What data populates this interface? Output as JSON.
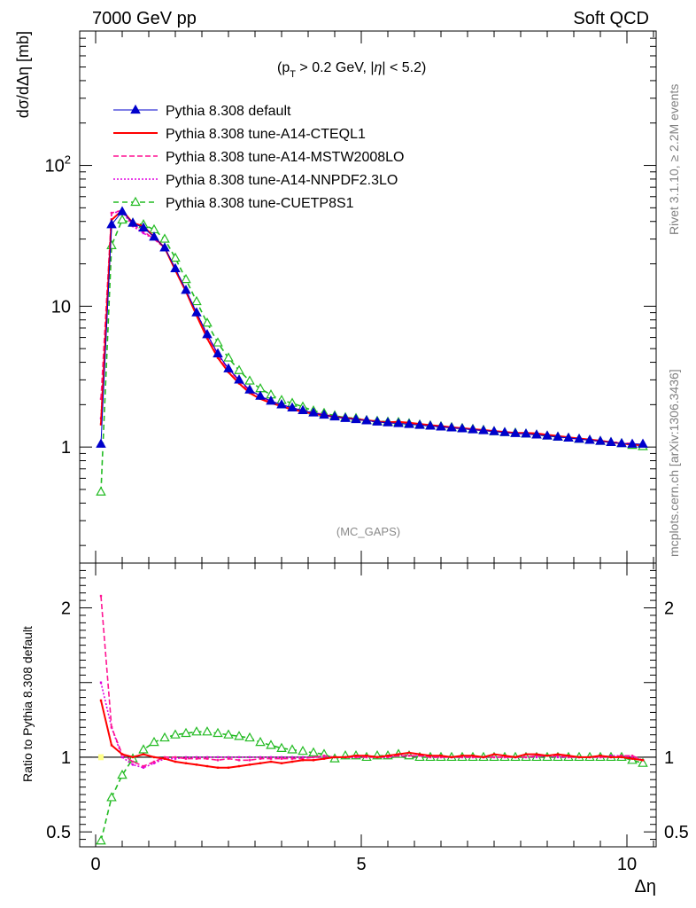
{
  "header": {
    "left": "7000 GeV pp",
    "right": "Soft QCD"
  },
  "side_labels": {
    "rivet": "Rivet 3.1.10, ≥ 2.2M events",
    "mcplots": "mcplots.cern.ch [arXiv:1306.3436]"
  },
  "colors": {
    "default": "#0000cc",
    "cteq": "#ff0000",
    "mstw": "#ff1493",
    "nnpdf": "#e000e0",
    "cuetp": "#22bb22",
    "ref_band": "#ffff88"
  },
  "chart_data": [
    {
      "type": "line",
      "title": "(p_T > 0.2 GeV, |η| < 5.2)",
      "watermark": "(MC_GAPS)",
      "ylabel": "dσ/dΔη [mb]",
      "xlabel": "",
      "yscale": "log",
      "ylim": [
        0.15,
        900
      ],
      "xlim": [
        -0.3,
        10.55
      ],
      "yticks": [
        {
          "value": 1,
          "label": "1"
        },
        {
          "value": 10,
          "label": "10"
        },
        {
          "value": 100,
          "label": "10^2"
        }
      ],
      "legend_position": "top-left",
      "x": [
        0.1,
        0.3,
        0.5,
        0.7,
        0.9,
        1.1,
        1.3,
        1.5,
        1.7,
        1.9,
        2.1,
        2.3,
        2.5,
        2.7,
        2.9,
        3.1,
        3.3,
        3.5,
        3.7,
        3.9,
        4.1,
        4.3,
        4.5,
        4.7,
        4.9,
        5.1,
        5.3,
        5.5,
        5.7,
        5.9,
        6.1,
        6.3,
        6.5,
        6.7,
        6.9,
        7.1,
        7.3,
        7.5,
        7.7,
        7.9,
        8.1,
        8.3,
        8.5,
        8.7,
        8.9,
        9.1,
        9.3,
        9.5,
        9.7,
        9.9,
        10.1,
        10.3
      ],
      "series": [
        {
          "name": "Pythia 8.308 default",
          "key": "default",
          "marker": "triangle-filled",
          "dash": "",
          "values": [
            1.05,
            38,
            47,
            39,
            36,
            31,
            26,
            18.5,
            13,
            9,
            6.3,
            4.6,
            3.6,
            3.0,
            2.55,
            2.3,
            2.12,
            2.0,
            1.9,
            1.82,
            1.75,
            1.69,
            1.64,
            1.6,
            1.57,
            1.54,
            1.51,
            1.49,
            1.47,
            1.45,
            1.43,
            1.41,
            1.39,
            1.37,
            1.35,
            1.33,
            1.31,
            1.29,
            1.27,
            1.25,
            1.24,
            1.22,
            1.2,
            1.18,
            1.16,
            1.14,
            1.12,
            1.1,
            1.08,
            1.06,
            1.05,
            1.05
          ]
        },
        {
          "name": "Pythia 8.308 tune-A14-CTEQL1",
          "key": "cteq",
          "marker": "",
          "dash": "",
          "values": [
            1.45,
            41,
            48,
            39,
            37,
            31,
            26,
            18,
            12.7,
            8.6,
            5.9,
            4.3,
            3.4,
            2.83,
            2.42,
            2.2,
            2.05,
            1.95,
            1.84,
            1.79,
            1.72,
            1.68,
            1.64,
            1.61,
            1.58,
            1.55,
            1.52,
            1.5,
            1.51,
            1.49,
            1.46,
            1.43,
            1.41,
            1.38,
            1.36,
            1.34,
            1.32,
            1.3,
            1.28,
            1.26,
            1.26,
            1.25,
            1.22,
            1.2,
            1.17,
            1.15,
            1.13,
            1.11,
            1.08,
            1.06,
            1.04,
            1.03
          ]
        },
        {
          "name": "Pythia 8.308 tune-A14-MSTW2008LO",
          "key": "mstw",
          "marker": "",
          "dash": "6,3",
          "values": [
            2.2,
            46,
            48,
            38,
            34,
            30,
            26,
            18.5,
            12.9,
            8.9,
            6.2,
            4.5,
            3.55,
            2.95,
            2.5,
            2.28,
            2.1,
            1.98,
            1.88,
            1.81,
            1.76,
            1.7,
            1.65,
            1.6,
            1.57,
            1.54,
            1.51,
            1.49,
            1.48,
            1.46,
            1.44,
            1.41,
            1.39,
            1.37,
            1.35,
            1.33,
            1.31,
            1.29,
            1.27,
            1.25,
            1.24,
            1.23,
            1.21,
            1.19,
            1.16,
            1.14,
            1.12,
            1.1,
            1.08,
            1.07,
            1.06,
            1.03
          ]
        },
        {
          "name": "Pythia 8.308 tune-A14-NNPDF2.3LO",
          "key": "nnpdf",
          "marker": "",
          "dash": "2,2",
          "values": [
            1.6,
            46,
            47,
            37,
            33,
            30,
            26,
            18.3,
            13,
            9,
            6.3,
            4.6,
            3.6,
            3.0,
            2.55,
            2.3,
            2.12,
            2.0,
            1.9,
            1.82,
            1.75,
            1.69,
            1.64,
            1.6,
            1.57,
            1.54,
            1.51,
            1.49,
            1.48,
            1.46,
            1.44,
            1.41,
            1.39,
            1.37,
            1.35,
            1.33,
            1.31,
            1.29,
            1.27,
            1.25,
            1.24,
            1.22,
            1.21,
            1.18,
            1.16,
            1.14,
            1.12,
            1.1,
            1.09,
            1.07,
            1.05,
            1.03
          ]
        },
        {
          "name": "Pythia 8.308 tune-CUETP8S1",
          "key": "cuetp",
          "marker": "triangle-open",
          "dash": "6,4",
          "values": [
            0.48,
            27,
            41,
            39,
            38,
            35,
            30,
            22,
            15.5,
            10.8,
            7.6,
            5.5,
            4.3,
            3.5,
            2.95,
            2.6,
            2.35,
            2.15,
            2.05,
            1.93,
            1.81,
            1.74,
            1.67,
            1.62,
            1.6,
            1.55,
            1.53,
            1.51,
            1.5,
            1.47,
            1.44,
            1.42,
            1.4,
            1.38,
            1.36,
            1.34,
            1.32,
            1.29,
            1.27,
            1.26,
            1.24,
            1.22,
            1.2,
            1.18,
            1.16,
            1.14,
            1.12,
            1.1,
            1.08,
            1.06,
            1.03,
            1.01
          ]
        }
      ]
    },
    {
      "type": "line",
      "ylabel": "Ratio to Pythia 8.308 default",
      "xlabel": "Δη",
      "ylim": [
        0.4,
        2.3
      ],
      "xlim": [
        -0.3,
        10.55
      ],
      "yticks": [
        {
          "value": 0.5,
          "label": "0.5"
        },
        {
          "value": 1,
          "label": "1"
        },
        {
          "value": 2,
          "label": "2"
        }
      ],
      "xticks": [
        {
          "value": 0,
          "label": "0"
        },
        {
          "value": 5,
          "label": "5"
        },
        {
          "value": 10,
          "label": "10"
        }
      ],
      "x": [
        0.1,
        0.3,
        0.5,
        0.7,
        0.9,
        1.1,
        1.3,
        1.5,
        1.7,
        1.9,
        2.1,
        2.3,
        2.5,
        2.7,
        2.9,
        3.1,
        3.3,
        3.5,
        3.7,
        3.9,
        4.1,
        4.3,
        4.5,
        4.7,
        4.9,
        5.1,
        5.3,
        5.5,
        5.7,
        5.9,
        6.1,
        6.3,
        6.5,
        6.7,
        6.9,
        7.1,
        7.3,
        7.5,
        7.7,
        7.9,
        8.1,
        8.3,
        8.5,
        8.7,
        8.9,
        9.1,
        9.3,
        9.5,
        9.7,
        9.9,
        10.1,
        10.3
      ],
      "series": [
        {
          "name": "Pythia 8.308 tune-A14-CTEQL1",
          "key": "cteq",
          "marker": "",
          "dash": "",
          "values": [
            1.38,
            1.08,
            1.02,
            1.0,
            1.02,
            1.0,
            0.99,
            0.97,
            0.96,
            0.95,
            0.94,
            0.93,
            0.93,
            0.94,
            0.95,
            0.96,
            0.97,
            0.96,
            0.97,
            0.98,
            0.98,
            0.99,
            1.0,
            1.0,
            1.01,
            1.01,
            1.0,
            1.01,
            1.02,
            1.03,
            1.02,
            1.01,
            1.01,
            1.0,
            1.01,
            1.01,
            1.0,
            1.02,
            1.01,
            1.0,
            1.02,
            1.02,
            1.01,
            1.02,
            1.01,
            1.0,
            1.0,
            1.01,
            1.0,
            1.0,
            0.99,
            0.98
          ]
        },
        {
          "name": "Pythia 8.308 tune-A14-MSTW2008LO",
          "key": "mstw",
          "marker": "",
          "dash": "6,3",
          "values": [
            2.08,
            1.2,
            1.02,
            0.97,
            0.94,
            0.97,
            1.0,
            1.0,
            0.99,
            0.99,
            0.99,
            0.98,
            0.99,
            0.98,
            0.98,
            0.99,
            0.99,
            0.99,
            0.99,
            0.99,
            1.0,
            1.01,
            1.0,
            1.0,
            1.0,
            1.0,
            1.0,
            1.0,
            1.01,
            1.01,
            1.01,
            1.0,
            1.0,
            1.0,
            1.0,
            1.0,
            1.0,
            1.0,
            1.0,
            1.0,
            1.0,
            1.01,
            1.01,
            1.01,
            1.0,
            1.0,
            1.0,
            1.0,
            1.0,
            1.01,
            1.01,
            0.98
          ]
        },
        {
          "name": "Pythia 8.308 tune-A14-NNPDF2.3LO",
          "key": "nnpdf",
          "marker": "",
          "dash": "2,2",
          "values": [
            1.5,
            1.2,
            1.0,
            0.95,
            0.93,
            0.96,
            0.99,
            0.99,
            1.0,
            1.0,
            1.0,
            1.0,
            1.0,
            1.0,
            1.0,
            1.0,
            1.0,
            1.0,
            1.0,
            1.0,
            1.0,
            1.0,
            1.0,
            1.0,
            1.0,
            1.0,
            1.0,
            1.0,
            1.01,
            1.01,
            1.01,
            1.0,
            1.0,
            1.0,
            1.0,
            1.0,
            1.0,
            1.0,
            1.0,
            1.0,
            1.0,
            1.0,
            1.01,
            1.0,
            1.0,
            1.0,
            1.0,
            1.0,
            1.01,
            1.01,
            1.0,
            0.98
          ]
        },
        {
          "name": "Pythia 8.308 tune-CUETP8S1",
          "key": "cuetp",
          "marker": "triangle-open",
          "dash": "6,4",
          "values": [
            0.44,
            0.73,
            0.88,
            0.99,
            1.05,
            1.1,
            1.13,
            1.15,
            1.16,
            1.17,
            1.17,
            1.16,
            1.15,
            1.14,
            1.13,
            1.1,
            1.08,
            1.06,
            1.05,
            1.04,
            1.03,
            1.02,
            0.99,
            1.01,
            1.01,
            1.0,
            1.01,
            1.01,
            1.02,
            1.01,
            1.0,
            1.0,
            1.0,
            1.0,
            1.0,
            1.0,
            1.0,
            1.0,
            1.0,
            1.0,
            1.0,
            1.0,
            1.0,
            1.0,
            1.0,
            1.0,
            1.0,
            1.0,
            1.0,
            1.0,
            0.98,
            0.96
          ]
        }
      ]
    }
  ]
}
